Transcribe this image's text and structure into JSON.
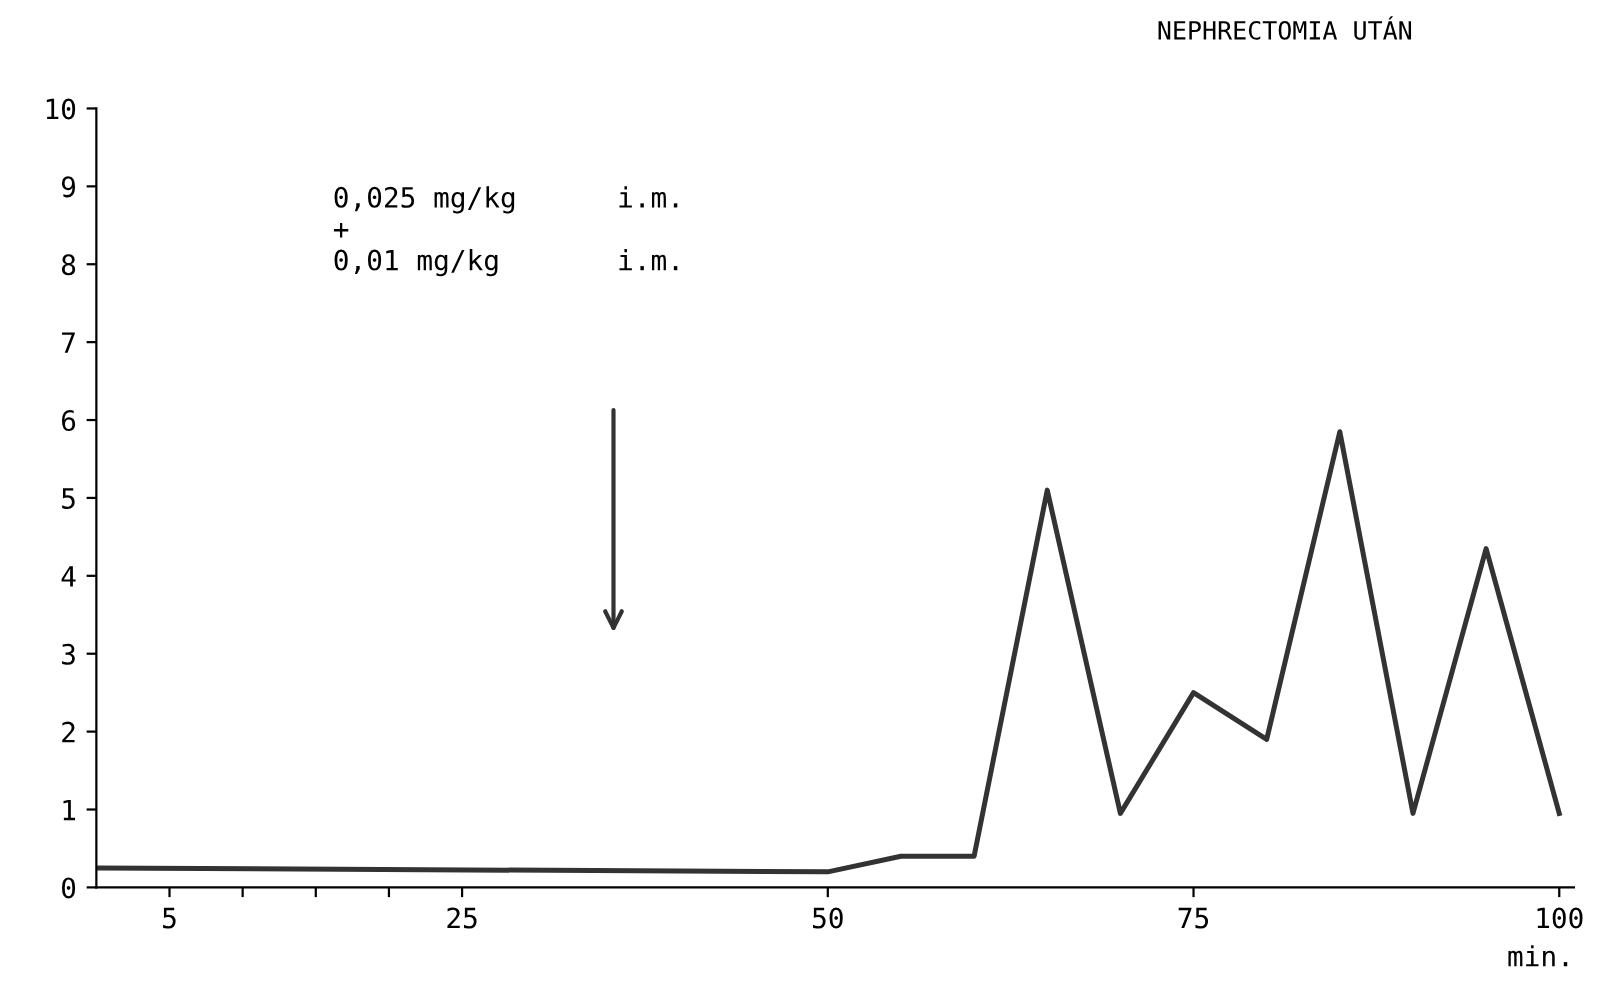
{
  "chart_data": {
    "type": "line",
    "title": "NEPHRECTOMIA UTÁN",
    "xlabel": "min.",
    "x": [
      0,
      50,
      55,
      60,
      65,
      70,
      75,
      80,
      85,
      90,
      95,
      100
    ],
    "series": [
      {
        "color": "#333333",
        "values": [
          0.25,
          0.2,
          0.4,
          0.4,
          5.1,
          0.95,
          2.5,
          1.9,
          5.85,
          0.95,
          4.35,
          0.95
        ]
      }
    ],
    "annotations": [
      "0,025 mg/kg      i.m.\n+\n0,01 mg/kg       i.m."
    ],
    "xlim": [
      0,
      101
    ],
    "xticks": [
      {
        "value": 5,
        "label": "5"
      },
      {
        "value": 10,
        "label": null
      },
      {
        "value": 15,
        "label": null
      },
      {
        "value": 20,
        "label": null
      },
      {
        "value": 25,
        "label": "25"
      },
      {
        "value": 50,
        "label": "50"
      },
      {
        "value": 75,
        "label": "75"
      },
      {
        "value": 100,
        "label": "100"
      }
    ],
    "ylim": [
      0,
      10
    ],
    "yticks": [
      0,
      1,
      2,
      3,
      4,
      5,
      6,
      7,
      8,
      9,
      10
    ],
    "grid": false,
    "legend": false,
    "marker": "none",
    "line_style": "solid"
  }
}
